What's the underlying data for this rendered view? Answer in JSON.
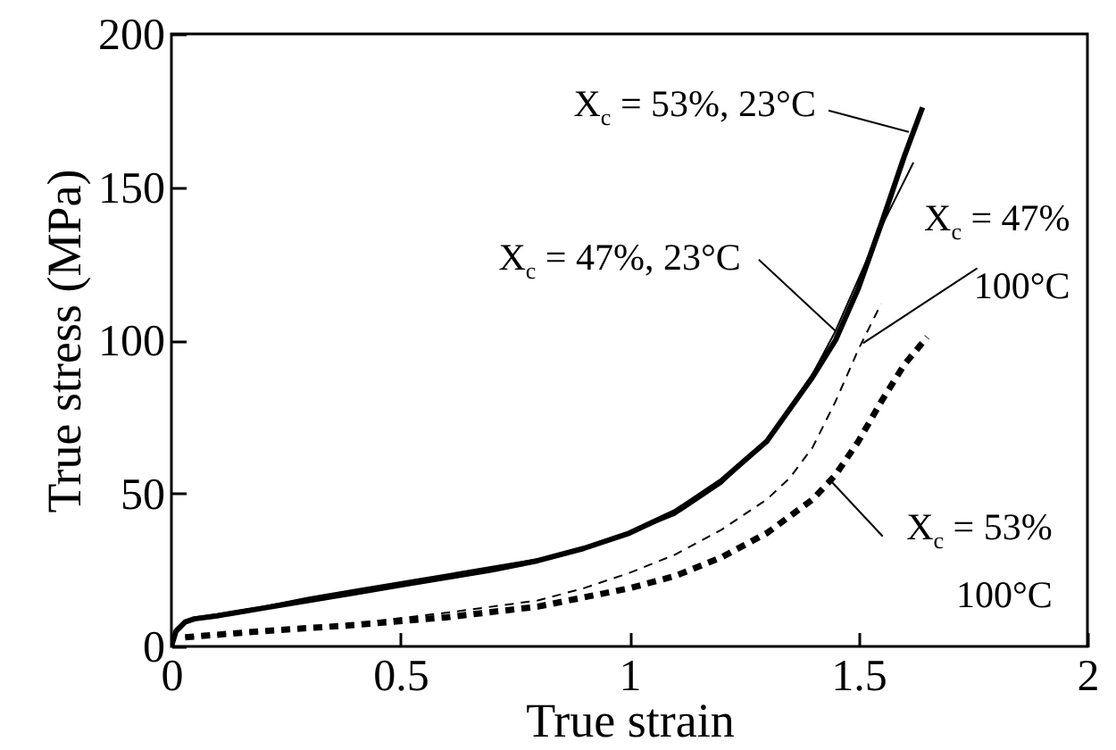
{
  "chart_data": {
    "type": "line",
    "xlabel": "True strain",
    "ylabel": "True stress (MPa)",
    "xlim": [
      0,
      2
    ],
    "xticks": [
      0,
      0.5,
      1,
      1.5,
      2
    ],
    "ylim": [
      0,
      200
    ],
    "yticks": [
      0,
      50,
      100,
      150,
      200
    ],
    "grid": false,
    "marker": "none",
    "series": [
      {
        "color": "#000000",
        "line_style": "solid",
        "x": [
          0,
          0.01,
          0.03,
          0.05,
          0.1,
          0.2,
          0.3,
          0.4,
          0.5,
          0.6,
          0.7,
          0.8,
          0.9,
          1.0,
          1.1,
          1.2,
          1.3,
          1.4,
          1.45,
          1.5,
          1.55,
          1.6,
          1.64
        ],
        "values": [
          0,
          5,
          8,
          9,
          10,
          12.5,
          15,
          17.5,
          20,
          22.5,
          25,
          28,
          32,
          37,
          44,
          54,
          67,
          88,
          100,
          117,
          138,
          160,
          176
        ]
      },
      {
        "color": "#000000",
        "line_style": "solid",
        "x": [
          0,
          0.01,
          0.03,
          0.05,
          0.1,
          0.2,
          0.3,
          0.4,
          0.5,
          0.6,
          0.7,
          0.8,
          0.9,
          1.0,
          1.1,
          1.2,
          1.3,
          1.4,
          1.45,
          1.5,
          1.55,
          1.62
        ],
        "values": [
          0,
          5,
          8,
          9.5,
          10.5,
          13,
          16,
          18.5,
          21,
          23.5,
          26,
          28.5,
          32,
          37,
          43,
          53,
          67,
          89,
          103,
          120,
          137,
          158
        ]
      },
      {
        "color": "#000000",
        "line_style": "dashed",
        "x": [
          0.03,
          0.2,
          0.4,
          0.6,
          0.8,
          0.9,
          1.0,
          1.1,
          1.2,
          1.3,
          1.35,
          1.4,
          1.45,
          1.5,
          1.55
        ],
        "values": [
          3,
          5,
          7.5,
          11,
          15,
          19,
          24,
          30,
          38,
          48,
          55,
          65,
          80,
          97,
          112
        ]
      },
      {
        "color": "#000000",
        "line_style": "dashed",
        "x": [
          0.03,
          0.2,
          0.4,
          0.6,
          0.8,
          0.9,
          1.0,
          1.1,
          1.2,
          1.3,
          1.4,
          1.45,
          1.5,
          1.55,
          1.6,
          1.65
        ],
        "values": [
          3,
          5,
          7,
          9.5,
          13,
          16,
          19,
          23,
          29,
          37,
          48,
          56,
          67,
          80,
          92,
          101
        ]
      }
    ],
    "annotations": [
      {
        "text": "X$_{c}$ = 53%, 23°C",
        "x": 1.61,
        "y": 168
      },
      {
        "text": "X$_{c}$ = 47%, 23°C",
        "x": 1.45,
        "y": 103
      },
      {
        "text": "X$_{c}$ = 47%\n100°C",
        "x": 1.51,
        "y": 99
      },
      {
        "text": "X$_{c}$ = 53%\n100°C",
        "x": 1.44,
        "y": 54
      }
    ]
  }
}
